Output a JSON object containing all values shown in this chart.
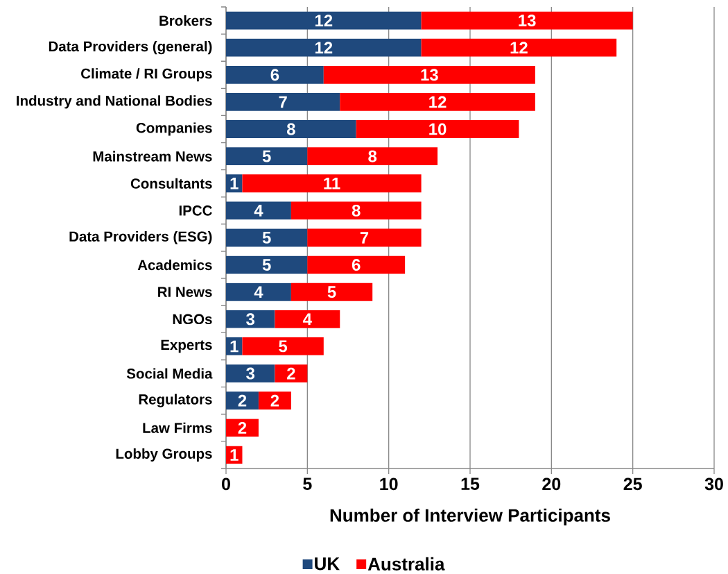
{
  "chart_data": {
    "type": "bar",
    "orientation": "horizontal",
    "stacked": true,
    "xlabel": "Number of Interview Participants",
    "categories": [
      "Brokers",
      "Data Providers (general)",
      "Climate / RI Groups",
      "Industry and National Bodies",
      "Companies",
      "Mainstream News",
      "Consultants",
      "IPCC",
      "Data Providers (ESG)",
      "Academics",
      "RI News",
      "NGOs",
      "Experts",
      "Social Media",
      "Regulators",
      "Law Firms",
      "Lobby Groups"
    ],
    "series": [
      {
        "name": "UK",
        "color": "#1f497d",
        "values": [
          12,
          12,
          6,
          7,
          8,
          5,
          1,
          4,
          5,
          5,
          4,
          3,
          1,
          3,
          2,
          0,
          0
        ],
        "value_labels": [
          "12",
          "12",
          "6",
          "7",
          "8",
          "5",
          "1",
          "4",
          "5",
          "5",
          "4",
          "3",
          "1",
          "3",
          "2",
          null,
          null
        ]
      },
      {
        "name": "Australia",
        "color": "#ff0000",
        "values": [
          13,
          12,
          13,
          12,
          10,
          8,
          11,
          8,
          7,
          6,
          5,
          4,
          5,
          2,
          2,
          2,
          1
        ],
        "value_labels": [
          "13",
          "12",
          "13",
          "12",
          "10",
          "8",
          "11",
          "8",
          "7",
          "6",
          "5",
          "4",
          "5",
          "2",
          "2",
          "2",
          "1"
        ]
      }
    ],
    "xlim": [
      0,
      30
    ],
    "xticks": [
      0,
      5,
      10,
      15,
      20,
      25,
      30
    ],
    "grid": "x",
    "legend": "bottom"
  }
}
